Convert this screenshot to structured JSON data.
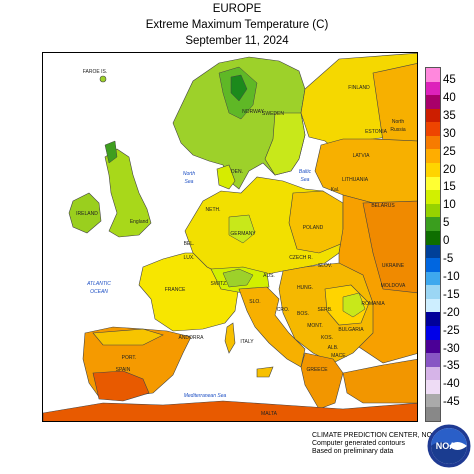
{
  "header": {
    "region": "EUROPE",
    "title": "Extreme Maximum Temperature (C)",
    "date": "September 11, 2024"
  },
  "map": {
    "place_labels": [
      {
        "text": "FAROE IS.",
        "kind": "country"
      },
      {
        "text": "NORWAY",
        "kind": "country"
      },
      {
        "text": "SWEDEN",
        "kind": "country"
      },
      {
        "text": "FINLAND",
        "kind": "country"
      },
      {
        "text": "ESTONIA",
        "kind": "country"
      },
      {
        "text": "North",
        "kind": "country"
      },
      {
        "text": "Russia",
        "kind": "country"
      },
      {
        "text": "LATVIA",
        "kind": "country"
      },
      {
        "text": "LITHUANIA",
        "kind": "country"
      },
      {
        "text": "Kal.",
        "kind": "country"
      },
      {
        "text": "BELARUS",
        "kind": "country"
      },
      {
        "text": "DEN.",
        "kind": "country"
      },
      {
        "text": "North",
        "kind": "sea"
      },
      {
        "text": "Sea",
        "kind": "sea"
      },
      {
        "text": "Baltic",
        "kind": "sea"
      },
      {
        "text": "Sea",
        "kind": "sea"
      },
      {
        "text": "IRELAND",
        "kind": "country"
      },
      {
        "text": "England",
        "kind": "country"
      },
      {
        "text": "NETH.",
        "kind": "country"
      },
      {
        "text": "POLAND",
        "kind": "country"
      },
      {
        "text": "GERMANY",
        "kind": "country"
      },
      {
        "text": "BEL.",
        "kind": "country"
      },
      {
        "text": "LUX.",
        "kind": "country"
      },
      {
        "text": "CZECH R.",
        "kind": "country"
      },
      {
        "text": "SLOV.",
        "kind": "country"
      },
      {
        "text": "UKRAINE",
        "kind": "country"
      },
      {
        "text": "MOLDOVA",
        "kind": "country"
      },
      {
        "text": "ATLANTIC",
        "kind": "sea"
      },
      {
        "text": "OCEAN",
        "kind": "sea"
      },
      {
        "text": "FRANCE",
        "kind": "country"
      },
      {
        "text": "SWITZ.",
        "kind": "country"
      },
      {
        "text": "AUS.",
        "kind": "country"
      },
      {
        "text": "HUNG.",
        "kind": "country"
      },
      {
        "text": "ROMANIA",
        "kind": "country"
      },
      {
        "text": "SLO.",
        "kind": "country"
      },
      {
        "text": "CRO.",
        "kind": "country"
      },
      {
        "text": "BOS.",
        "kind": "country"
      },
      {
        "text": "SERB.",
        "kind": "country"
      },
      {
        "text": "MONT.",
        "kind": "country"
      },
      {
        "text": "KOS.",
        "kind": "country"
      },
      {
        "text": "BULGARIA",
        "kind": "country"
      },
      {
        "text": "ALB.",
        "kind": "country"
      },
      {
        "text": "MACE.",
        "kind": "country"
      },
      {
        "text": "ANDORRA",
        "kind": "country"
      },
      {
        "text": "ITALY",
        "kind": "country"
      },
      {
        "text": "PORT.",
        "kind": "country"
      },
      {
        "text": "SPAIN",
        "kind": "country"
      },
      {
        "text": "GREECE",
        "kind": "country"
      },
      {
        "text": "Mediterranean Sea",
        "kind": "sea"
      },
      {
        "text": "MALTA",
        "kind": "country"
      }
    ]
  },
  "legend": {
    "ticks": [
      "45",
      "40",
      "35",
      "30",
      "25",
      "20",
      "15",
      "10",
      "5",
      "0",
      "-5",
      "-10",
      "-15",
      "-20",
      "-25",
      "-30",
      "-35",
      "-40",
      "-45"
    ],
    "colors": [
      "#ff88dd",
      "#dd22bb",
      "#a8006a",
      "#cc1e00",
      "#ee4400",
      "#f77b00",
      "#ffad00",
      "#ffd400",
      "#ffff33",
      "#d2f000",
      "#96d200",
      "#3a9e1e",
      "#0e6e00",
      "#004099",
      "#0066e0",
      "#3ea8ee",
      "#9bd6f4",
      "#cdeeff",
      "#00009a",
      "#0000e8",
      "#4b0096",
      "#8855c4",
      "#d6b4e8",
      "#eedcf5",
      "#aaaaaa",
      "#888888"
    ]
  },
  "footer": {
    "line1": "CLIMATE PREDICTION CENTER, NOAA",
    "line2": "Computer generated contours",
    "line3": "Based on preliminary data"
  },
  "logo": {
    "text": "NOAA",
    "icon": "noaa-logo-icon"
  }
}
